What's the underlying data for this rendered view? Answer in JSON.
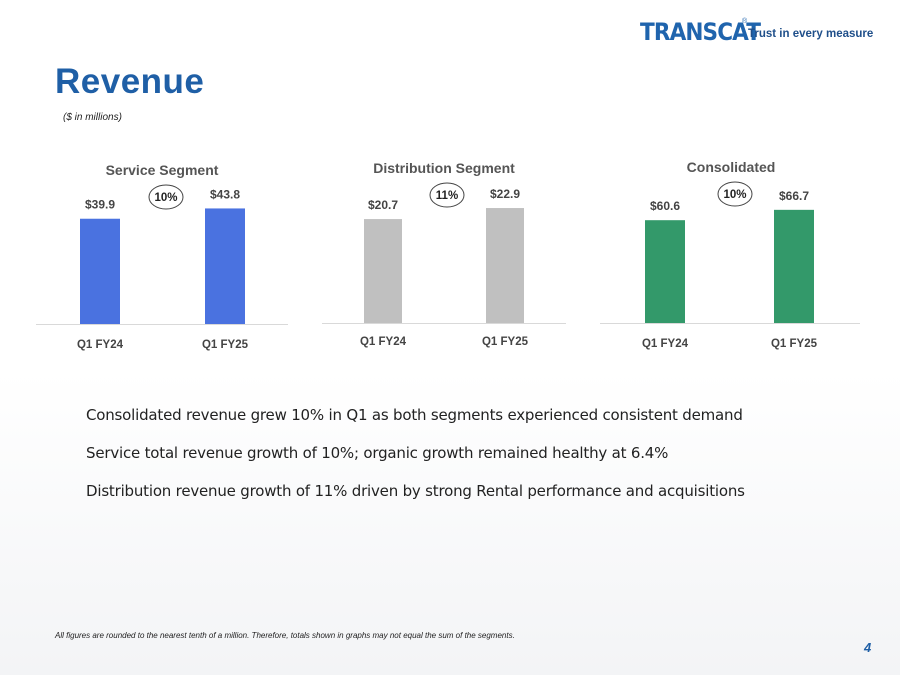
{
  "logo": {
    "brand": "TRANSCAT",
    "registered": "®",
    "tagline": "Trust in every measure"
  },
  "header": {
    "title": "Revenue",
    "subtitle": "($ in millions)"
  },
  "chart_data": [
    {
      "type": "bar",
      "title": "Service Segment",
      "categories": [
        "Q1 FY24",
        "Q1 FY25"
      ],
      "values": [
        39.9,
        43.8
      ],
      "value_labels": [
        "$39.9",
        "$43.8"
      ],
      "growth_label": "10%",
      "color": "#4a72e0",
      "ylim": [
        0,
        47
      ]
    },
    {
      "type": "bar",
      "title": "Distribution Segment",
      "categories": [
        "Q1 FY24",
        "Q1 FY25"
      ],
      "values": [
        20.7,
        22.9
      ],
      "value_labels": [
        "$20.7",
        "$22.9"
      ],
      "growth_label": "11%",
      "color": "#c0c0c0",
      "ylim": [
        0,
        24.5
      ]
    },
    {
      "type": "bar",
      "title": "Consolidated",
      "categories": [
        "Q1 FY24",
        "Q1 FY25"
      ],
      "values": [
        60.6,
        66.7
      ],
      "value_labels": [
        "$60.6",
        "$66.7"
      ],
      "growth_label": "10%",
      "color": "#33996a",
      "ylim": [
        0,
        72.5
      ]
    }
  ],
  "bullets": [
    "Consolidated revenue grew 10% in Q1 as both segments experienced consistent demand",
    "Service total revenue growth of 10%; organic growth remained healthy at 6.4%",
    "Distribution revenue growth of 11% driven by strong Rental performance and acquisitions"
  ],
  "footnote": "All figures are rounded to the nearest tenth of a million. Therefore, totals shown in graphs may not equal the sum of the segments.",
  "page_number": "4"
}
